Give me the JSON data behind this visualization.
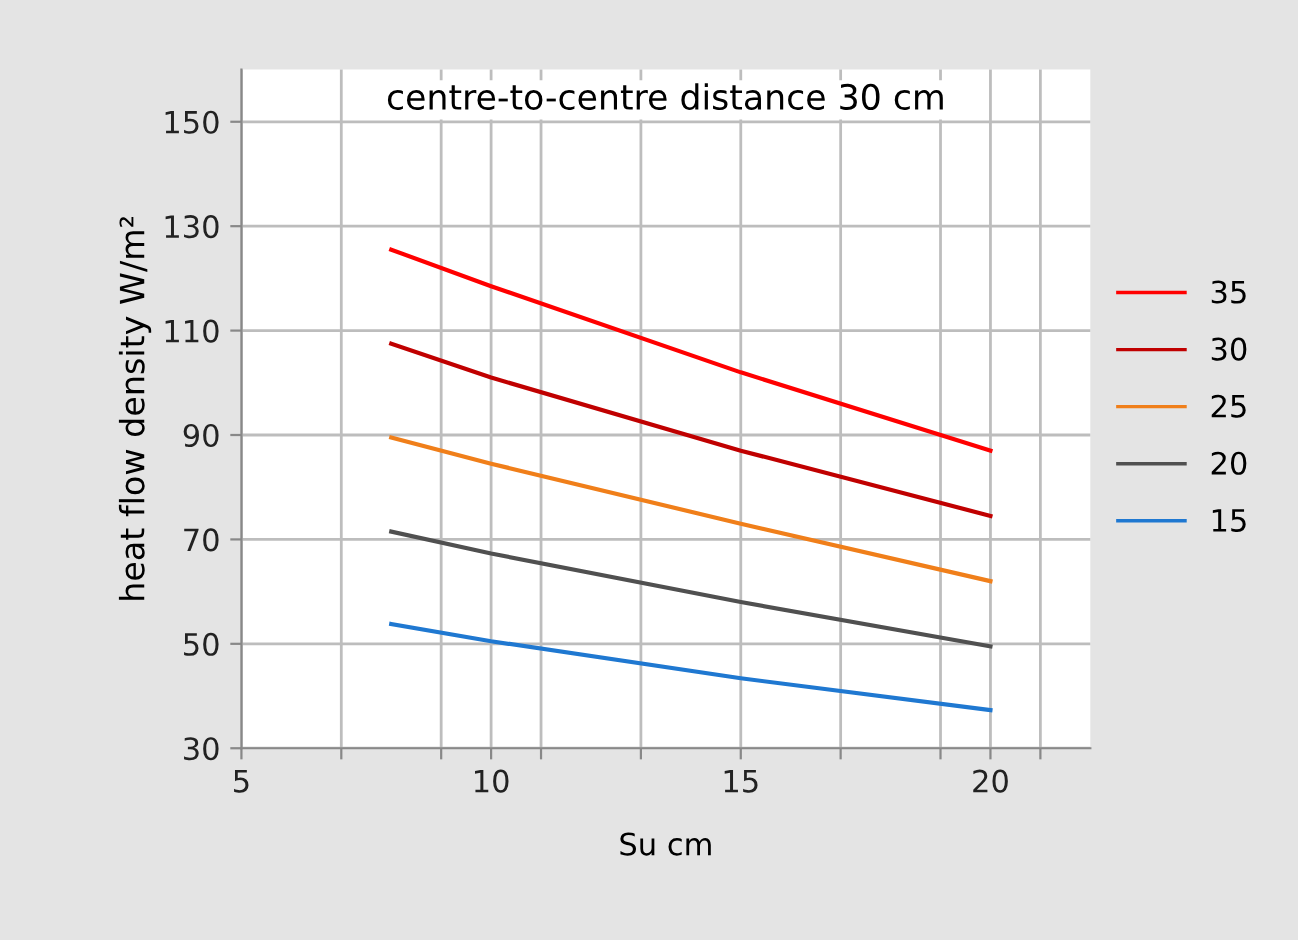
{
  "chart_data": {
    "type": "line",
    "title": "centre-to-centre distance 30 cm",
    "xlabel": "Su cm",
    "ylabel": "heat flow density W/m²",
    "x": [
      8,
      10,
      15,
      20
    ],
    "series": [
      {
        "name": "35",
        "color": "#ff0000",
        "values": [
          125.5,
          118.5,
          102,
          87
        ]
      },
      {
        "name": "30",
        "color": "#c00000",
        "values": [
          107.5,
          101,
          87,
          74.5
        ]
      },
      {
        "name": "25",
        "color": "#f07f1a",
        "values": [
          89.5,
          84.5,
          73,
          62
        ]
      },
      {
        "name": "20",
        "color": "#505050",
        "values": [
          71.5,
          67.3,
          58,
          49.5
        ]
      },
      {
        "name": "15",
        "color": "#1f78d1",
        "values": [
          53.8,
          50.5,
          43.4,
          37.3
        ]
      }
    ],
    "xlim": [
      5,
      22
    ],
    "xticks": [
      5,
      {
        "value": 7,
        "label": null
      },
      {
        "value": 9,
        "label": null
      },
      10,
      {
        "value": 11,
        "label": null
      },
      {
        "value": 13,
        "label": null
      },
      15,
      {
        "value": 17,
        "label": null
      },
      {
        "value": 19,
        "label": null
      },
      20,
      {
        "value": 21,
        "label": null
      }
    ],
    "ylim": [
      30,
      160
    ],
    "yticks": [
      30,
      50,
      70,
      90,
      110,
      130,
      150
    ],
    "grid": true,
    "legend": "right",
    "marker": "none",
    "line_style": "solid"
  }
}
